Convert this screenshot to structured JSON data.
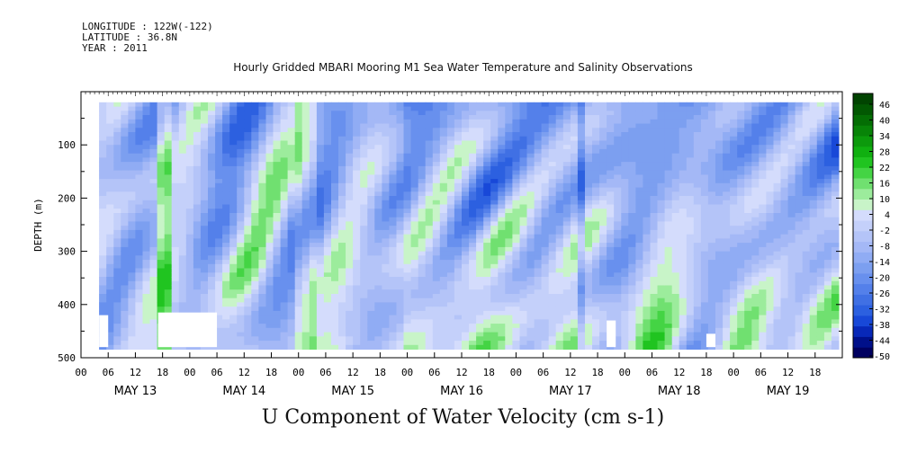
{
  "meta": {
    "longitude": "LONGITUDE : 122W(-122)",
    "latitude": "LATITUDE : 36.8N",
    "year": "YEAR : 2011"
  },
  "title": "Hourly Gridded MBARI Mooring M1 Sea Water Temperature and Salinity Observations",
  "bottom_title": "U Component of Water Velocity (cm s-1)",
  "chart_data": {
    "type": "heatmap",
    "ylabel": "DEPTH (m)",
    "y_inverted": true,
    "ylim": [
      500,
      0
    ],
    "y_ticks": [
      100,
      200,
      300,
      400,
      500
    ],
    "y_tick_labels": [
      "100",
      "200",
      "300",
      "400",
      "500"
    ],
    "x_hours_range": [
      -12,
      156
    ],
    "x_tick_labels": [
      "00",
      "06",
      "12",
      "18",
      "00",
      "06",
      "12",
      "18",
      "00",
      "06",
      "12",
      "18",
      "00",
      "06",
      "12",
      "18",
      "00",
      "06",
      "12",
      "18",
      "00",
      "06",
      "12",
      "18",
      "00",
      "06",
      "12",
      "18"
    ],
    "x_day_labels": [
      "MAY 13",
      "MAY 14",
      "MAY 15",
      "MAY 16",
      "MAY 17",
      "MAY 18",
      "MAY 19"
    ],
    "data_depth_range": [
      20,
      480
    ],
    "data_time_range": [
      -8,
      155
    ],
    "colorbar": {
      "labels": [
        "46",
        "40",
        "34",
        "28",
        "22",
        "16",
        "10",
        "4",
        "-2",
        "-8",
        "-14",
        "-20",
        "-26",
        "-32",
        "-38",
        "-44",
        "-50"
      ],
      "range": [
        -50,
        52
      ],
      "colors": [
        "#000060",
        "#00108a",
        "#0828b8",
        "#1848d8",
        "#2c60e0",
        "#4070e4",
        "#5480ea",
        "#6890ee",
        "#7c9ff0",
        "#90acf4",
        "#a4b8f6",
        "#b4c4f8",
        "#c4d0fa",
        "#d4dcfc",
        "#c8f4c8",
        "#9cec9c",
        "#70e070",
        "#44d444",
        "#20c420",
        "#10b010",
        "#0c9a0c",
        "#088408",
        "#046e04",
        "#025802",
        "#014401"
      ]
    }
  }
}
